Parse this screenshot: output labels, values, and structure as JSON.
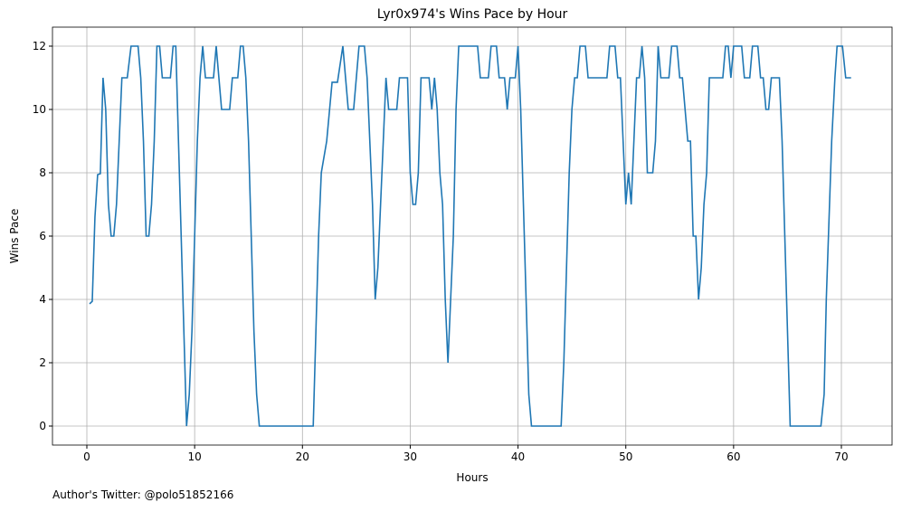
{
  "chart_data": {
    "type": "line",
    "title": "Lyr0x974's Wins Pace by Hour",
    "xlabel": "Hours",
    "ylabel": "Wins Pace",
    "annotation": "Author's Twitter: @polo51852166",
    "x": [
      0.25,
      0.5,
      0.75,
      1.0,
      1.25,
      1.5,
      1.75,
      2.0,
      2.25,
      2.5,
      2.75,
      3,
      3.25,
      3.5,
      3.75,
      4.1,
      4.75,
      5,
      5.25,
      5.5,
      5.75,
      6,
      6.25,
      6.5,
      6.75,
      7,
      7.75,
      8,
      8.25,
      8.5,
      9.25,
      9.5,
      9.75,
      10,
      10.25,
      10.5,
      10.75,
      11,
      11.75,
      12,
      12.25,
      12.5,
      13.25,
      13.5,
      14,
      14.25,
      14.5,
      14.75,
      15,
      15.25,
      15.5,
      15.75,
      16,
      21,
      21.25,
      21.5,
      21.75,
      22.25,
      22.75,
      23.25,
      23.75,
      24,
      24.25,
      24.75,
      25,
      25.25,
      25.75,
      26,
      26.25,
      26.5,
      26.75,
      27,
      27.25,
      27.5,
      27.75,
      28,
      28.75,
      29,
      29.75,
      30,
      30.25,
      30.5,
      30.75,
      31,
      31.75,
      32,
      32.25,
      32.5,
      32.75,
      33,
      33.25,
      33.5,
      33.75,
      34,
      34.25,
      34.5,
      36.25,
      36.5,
      37.25,
      37.5,
      38,
      38.25,
      38.75,
      39,
      39.25,
      39.75,
      40,
      40.25,
      40.5,
      40.75,
      41,
      41.25,
      44,
      44.25,
      44.5,
      44.75,
      45,
      45.25,
      45.5,
      45.75,
      46.25,
      46.5,
      48.25,
      48.5,
      49,
      49.25,
      49.5,
      49.75,
      50,
      50.25,
      50.5,
      50.75,
      51,
      51.25,
      51.5,
      51.75,
      52,
      52.5,
      52.75,
      53,
      53.25,
      54,
      54.25,
      54.75,
      55,
      55.25,
      55.5,
      55.75,
      56,
      56.25,
      56.5,
      56.75,
      57,
      57.25,
      57.5,
      57.75,
      59,
      59.25,
      59.5,
      59.75,
      60,
      60.75,
      61,
      61.5,
      61.75,
      62.25,
      62.5,
      62.75,
      63,
      63.25,
      63.5,
      64.25,
      64.5,
      64.75,
      65,
      65.25,
      68.1,
      68.4,
      68.6,
      68.9,
      69.1,
      69.4,
      69.6,
      70.1,
      70.4,
      70.9
    ],
    "series": [
      {
        "color": "#1f77b4",
        "values": [
          3.86,
          3.94,
          6.6,
          7.94,
          7.97,
          11,
          10,
          7,
          6,
          6,
          7,
          9,
          11,
          11,
          11,
          12,
          12,
          11,
          9,
          6,
          6,
          7,
          9,
          12,
          12,
          11,
          11,
          12,
          12,
          9,
          0,
          1,
          3,
          6,
          9,
          11,
          12,
          11,
          11,
          12,
          11,
          10,
          10,
          11,
          11,
          12,
          12,
          11,
          9,
          6,
          3,
          1,
          0,
          0,
          3,
          6,
          8,
          9,
          10.86,
          10.86,
          12,
          11,
          10,
          10,
          11,
          12,
          12,
          11,
          9,
          7,
          4,
          5,
          7,
          9,
          11,
          10,
          10,
          11,
          11,
          8,
          7,
          7,
          8,
          11,
          11,
          10,
          11,
          10,
          8,
          7,
          4,
          2,
          4,
          6,
          10,
          12,
          12,
          11,
          11,
          12,
          12,
          11,
          11,
          10,
          11,
          11,
          12,
          10,
          7,
          4,
          1,
          0,
          0,
          2,
          5,
          8,
          10,
          11,
          11,
          12,
          12,
          11,
          11,
          12,
          12,
          11,
          11,
          9,
          7,
          8,
          7,
          9,
          11,
          11,
          12,
          11,
          8,
          8,
          9,
          12,
          11,
          11,
          12,
          12,
          11,
          11,
          10,
          9,
          9,
          6,
          6,
          4,
          5,
          7,
          8,
          11,
          11,
          12,
          12,
          11,
          12,
          12,
          11,
          11,
          12,
          12,
          11,
          11,
          10,
          10,
          11,
          11,
          9,
          6,
          3,
          0,
          0,
          1,
          4,
          7,
          9,
          11,
          12,
          12,
          11,
          11
        ]
      }
    ],
    "xlim": [
      -3.19,
      74.7
    ],
    "ylim": [
      -0.6,
      12.6
    ],
    "xticks": [
      0,
      10,
      20,
      30,
      40,
      50,
      60,
      70
    ],
    "yticks": [
      0,
      2,
      4,
      6,
      8,
      10,
      12
    ],
    "grid": true
  }
}
